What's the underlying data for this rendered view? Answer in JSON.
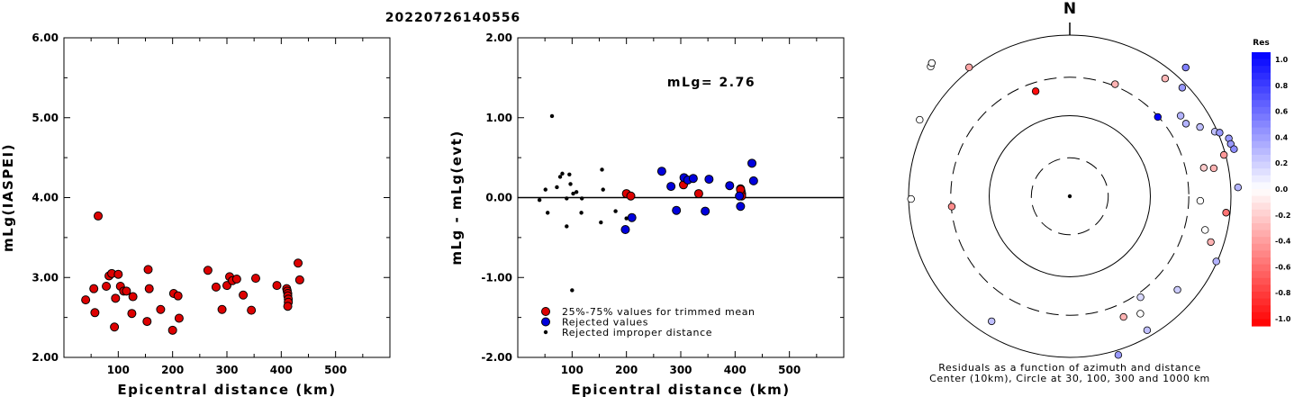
{
  "title": "20220726140556",
  "chart_data": [
    {
      "type": "scatter",
      "xlabel": "Epicentral distance (km)",
      "ylabel": "mLg(IASPEI)",
      "xlim": [
        0,
        600
      ],
      "ylim": [
        2.0,
        6.0
      ],
      "xticks": [
        "100",
        "200",
        "300",
        "400",
        "500"
      ],
      "yticks": [
        "2.00",
        "3.00",
        "4.00",
        "5.00",
        "6.00"
      ],
      "marker_color": "#dd0000",
      "points": [
        [
          40,
          2.72
        ],
        [
          55,
          2.86
        ],
        [
          57,
          2.56
        ],
        [
          63,
          3.77
        ],
        [
          78,
          2.89
        ],
        [
          83,
          3.02
        ],
        [
          88,
          3.05
        ],
        [
          93,
          2.38
        ],
        [
          95,
          2.74
        ],
        [
          100,
          3.04
        ],
        [
          104,
          2.89
        ],
        [
          110,
          2.83
        ],
        [
          115,
          2.83
        ],
        [
          125,
          2.55
        ],
        [
          127,
          2.76
        ],
        [
          153,
          2.45
        ],
        [
          155,
          3.1
        ],
        [
          157,
          2.86
        ],
        [
          178,
          2.6
        ],
        [
          200,
          2.34
        ],
        [
          202,
          2.8
        ],
        [
          210,
          2.77
        ],
        [
          212,
          2.49
        ],
        [
          265,
          3.09
        ],
        [
          280,
          2.88
        ],
        [
          291,
          2.6
        ],
        [
          300,
          2.9
        ],
        [
          305,
          3.01
        ],
        [
          310,
          2.96
        ],
        [
          318,
          2.98
        ],
        [
          330,
          2.78
        ],
        [
          345,
          2.59
        ],
        [
          353,
          2.99
        ],
        [
          392,
          2.9
        ],
        [
          410,
          2.86
        ],
        [
          411,
          2.83
        ],
        [
          412,
          2.8
        ],
        [
          412,
          2.77
        ],
        [
          413,
          2.73
        ],
        [
          413,
          2.69
        ],
        [
          412,
          2.64
        ],
        [
          431,
          3.18
        ],
        [
          434,
          2.97
        ]
      ]
    },
    {
      "type": "scatter",
      "xlabel": "Epicentral distance (km)",
      "ylabel": "mLg - mLg(evt)",
      "xlim": [
        0,
        600
      ],
      "ylim": [
        -2.0,
        2.0
      ],
      "xticks": [
        "100",
        "200",
        "300",
        "400",
        "500"
      ],
      "yticks": [
        "-2.00",
        "-1.00",
        "0.00",
        "1.00",
        "2.00"
      ],
      "annotation": "mLg= 2.76",
      "legend": [
        {
          "label": "25%-75% values for trimmed mean",
          "color": "#dd0000"
        },
        {
          "label": "Rejected values",
          "color": "#0000dd"
        },
        {
          "label": "Rejected improper distance",
          "color": "#000000"
        }
      ],
      "series": [
        {
          "color": "#dd0000",
          "points": [
            [
              200,
              0.05
            ],
            [
              208,
              0.02
            ],
            [
              305,
              0.16
            ],
            [
              333,
              0.05
            ],
            [
              410,
              0.11
            ],
            [
              411,
              0.08
            ],
            [
              412,
              0.05
            ],
            [
              412,
              0.02
            ],
            [
              410,
              0.1
            ]
          ]
        },
        {
          "color": "#0000dd",
          "points": [
            [
              198,
              -0.4
            ],
            [
              210,
              -0.25
            ],
            [
              265,
              0.33
            ],
            [
              282,
              0.14
            ],
            [
              292,
              -0.16
            ],
            [
              306,
              0.25
            ],
            [
              313,
              0.22
            ],
            [
              323,
              0.24
            ],
            [
              345,
              -0.17
            ],
            [
              352,
              0.23
            ],
            [
              390,
              0.15
            ],
            [
              408,
              0.02
            ],
            [
              410,
              -0.11
            ],
            [
              431,
              0.43
            ],
            [
              434,
              0.21
            ]
          ]
        },
        {
          "color": "#000000",
          "points": [
            [
              40,
              -0.03
            ],
            [
              51,
              0.1
            ],
            [
              55,
              -0.19
            ],
            [
              63,
              1.02
            ],
            [
              72,
              0.13
            ],
            [
              78,
              0.26
            ],
            [
              82,
              0.3
            ],
            [
              90,
              -0.36
            ],
            [
              90,
              -0.01
            ],
            [
              95,
              0.29
            ],
            [
              97,
              0.17
            ],
            [
              100,
              -1.16
            ],
            [
              102,
              0.05
            ],
            [
              108,
              0.07
            ],
            [
              117,
              -0.19
            ],
            [
              118,
              -0.01
            ],
            [
              153,
              -0.31
            ],
            [
              155,
              0.35
            ],
            [
              157,
              0.1
            ],
            [
              180,
              -0.17
            ],
            [
              200,
              -0.26
            ]
          ]
        }
      ]
    },
    {
      "type": "scatter",
      "polar": true,
      "north_label": "N",
      "caption": [
        "Residuals as a function of azimuth and distance",
        "Center (10km), Circle at 30, 100, 300 and 1000 km"
      ],
      "colorbar": {
        "title": "Res",
        "ticks": [
          "1.0",
          "0.8",
          "0.6",
          "0.4",
          "0.2",
          "0.0",
          "-0.2",
          "-0.4",
          "-0.6",
          "-0.8",
          "-1.0"
        ],
        "range": [
          -1.0,
          1.0
        ],
        "color_positive": "#0000ff",
        "color_negative": "#ff0000"
      },
      "points_note": "azimuth in degrees clockwise from N, log10 distance in km, residual",
      "points": [
        [
          -47,
          3.36,
          0.0
        ],
        [
          -46,
          3.38,
          0.0
        ],
        [
          -38,
          3.03,
          -0.35
        ],
        [
          -18,
          2.37,
          -0.95
        ],
        [
          22,
          2.5,
          -0.3
        ],
        [
          39,
          2.88,
          -0.28
        ],
        [
          42,
          3.15,
          0.5
        ],
        [
          46,
          2.94,
          0.4
        ],
        [
          48,
          2.47,
          1.0
        ],
        [
          54,
          2.7,
          0.3
        ],
        [
          58,
          2.7,
          0.3
        ],
        [
          62,
          2.83,
          0.25
        ],
        [
          66,
          2.97,
          0.25
        ],
        [
          67,
          3.02,
          0.4
        ],
        [
          70,
          3.1,
          0.4
        ],
        [
          72,
          3.1,
          0.4
        ],
        [
          74,
          3.12,
          0.45
        ],
        [
          75,
          2.98,
          -0.4
        ],
        [
          78,
          2.7,
          -0.2
        ],
        [
          79,
          2.82,
          -0.3
        ],
        [
          87,
          3.09,
          0.3
        ],
        [
          92,
          2.62,
          0.0
        ],
        [
          96,
          2.95,
          -0.55
        ],
        [
          104,
          2.73,
          0.0
        ],
        [
          108,
          2.84,
          -0.3
        ],
        [
          114,
          2.99,
          0.3
        ],
        [
          131,
          2.77,
          0.2
        ],
        [
          145,
          2.53,
          0.15
        ],
        [
          149,
          2.7,
          0.0
        ],
        [
          150,
          2.92,
          0.25
        ],
        [
          156,
          2.64,
          -0.3
        ],
        [
          163,
          3.06,
          0.4
        ],
        [
          212,
          2.83,
          0.25
        ],
        [
          265,
          2.47,
          -0.45
        ],
        [
          269,
          2.97,
          0.0
        ],
        [
          297,
          3.09,
          0.0
        ]
      ]
    }
  ]
}
